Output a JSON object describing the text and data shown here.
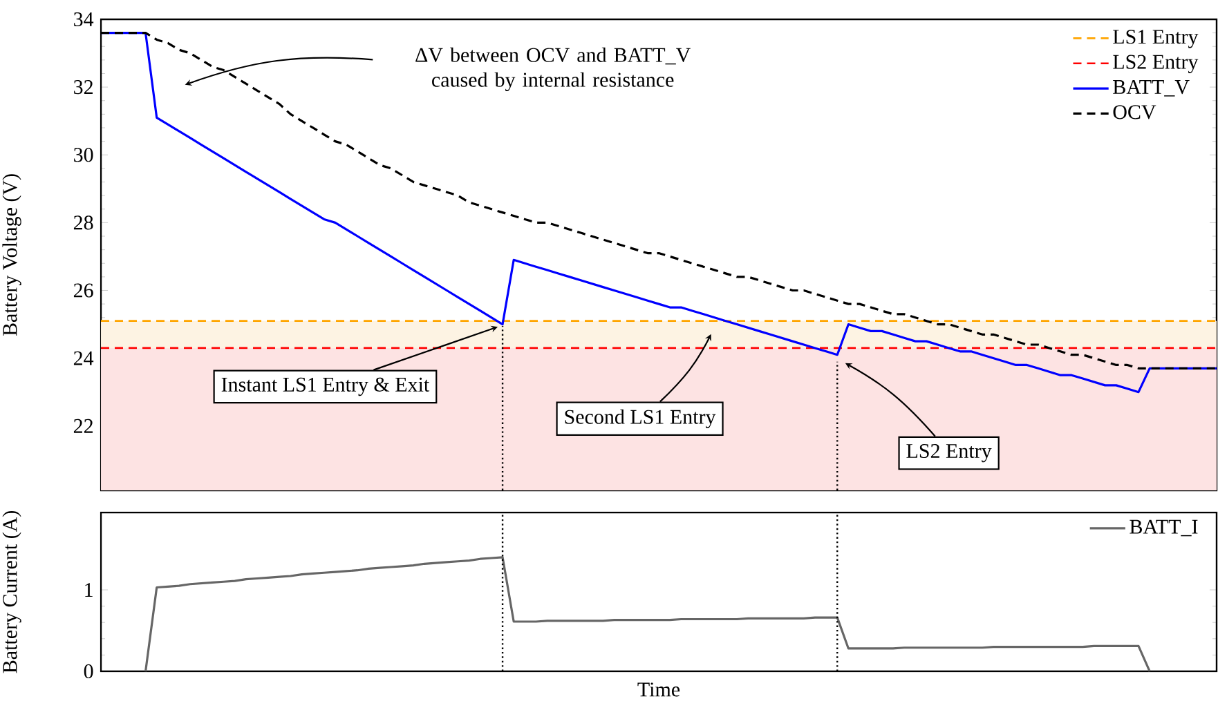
{
  "chart_data": [
    {
      "type": "line",
      "ylabel": "Battery Voltage (V)",
      "ylim": [
        20.1,
        34
      ],
      "yticks": [
        22,
        24,
        26,
        28,
        30,
        32,
        34
      ],
      "legend": "top right",
      "grid": false,
      "marker": "none",
      "categories": [
        null,
        null,
        null,
        null,
        null,
        null,
        null,
        null,
        null,
        null,
        null,
        null,
        null,
        null,
        null,
        null,
        null,
        null,
        null,
        null,
        null,
        null,
        null,
        null,
        null,
        null,
        null,
        null,
        null,
        null,
        null,
        null,
        null,
        null,
        null,
        null,
        null,
        null,
        null,
        null,
        null,
        null,
        null,
        null,
        null,
        null,
        null,
        null,
        null,
        null,
        null,
        null,
        null,
        null,
        null,
        null,
        null,
        null,
        null,
        null,
        null,
        null,
        null,
        null,
        null,
        null,
        null,
        null,
        null,
        null,
        null,
        null,
        null,
        null,
        null,
        null,
        null,
        null,
        null,
        null,
        null,
        null,
        null,
        null,
        null,
        null,
        null,
        null,
        null,
        null,
        null,
        null,
        null,
        null,
        null,
        null,
        null,
        null,
        null,
        null,
        null
      ],
      "series": [
        {
          "name": "BATT_V",
          "color": "#0000ff",
          "line_style": "solid",
          "values": [
            33.6,
            33.6,
            33.6,
            33.6,
            33.6,
            31.1,
            30.9,
            30.7,
            30.5,
            30.3,
            30.1,
            29.9,
            29.7,
            29.5,
            29.3,
            29.1,
            28.9,
            28.7,
            28.5,
            28.3,
            28.1,
            28.0,
            27.8,
            27.6,
            27.4,
            27.2,
            27.0,
            26.8,
            26.6,
            26.4,
            26.2,
            26.0,
            25.8,
            25.6,
            25.4,
            25.2,
            25.0,
            26.9,
            26.8,
            26.7,
            26.6,
            26.5,
            26.4,
            26.3,
            26.2,
            26.1,
            26.0,
            25.9,
            25.8,
            25.7,
            25.6,
            25.5,
            25.5,
            25.4,
            25.3,
            25.2,
            25.1,
            25.0,
            24.9,
            24.8,
            24.7,
            24.6,
            24.5,
            24.4,
            24.3,
            24.2,
            24.1,
            25.0,
            24.9,
            24.8,
            24.8,
            24.7,
            24.6,
            24.5,
            24.5,
            24.4,
            24.3,
            24.2,
            24.2,
            24.1,
            24.0,
            23.9,
            23.8,
            23.8,
            23.7,
            23.6,
            23.5,
            23.5,
            23.4,
            23.3,
            23.2,
            23.2,
            23.1,
            23.0,
            23.7,
            23.7,
            23.7,
            23.7,
            23.7,
            23.7,
            23.7
          ]
        },
        {
          "name": "OCV",
          "color": "#000000",
          "line_style": "dashed",
          "values": [
            33.6,
            33.6,
            33.6,
            33.6,
            33.6,
            33.4,
            33.3,
            33.1,
            33.0,
            32.8,
            32.6,
            32.5,
            32.3,
            32.1,
            31.9,
            31.7,
            31.5,
            31.2,
            31.0,
            30.8,
            30.6,
            30.4,
            30.3,
            30.1,
            29.9,
            29.7,
            29.6,
            29.4,
            29.2,
            29.1,
            29.0,
            28.9,
            28.8,
            28.6,
            28.5,
            28.4,
            28.3,
            28.2,
            28.1,
            28.0,
            28.0,
            27.9,
            27.8,
            27.7,
            27.6,
            27.5,
            27.4,
            27.3,
            27.2,
            27.1,
            27.1,
            27.0,
            26.9,
            26.8,
            26.7,
            26.6,
            26.5,
            26.4,
            26.4,
            26.3,
            26.2,
            26.1,
            26.0,
            26.0,
            25.9,
            25.8,
            25.7,
            25.6,
            25.6,
            25.5,
            25.4,
            25.3,
            25.3,
            25.2,
            25.1,
            25.0,
            25.0,
            24.9,
            24.8,
            24.7,
            24.7,
            24.6,
            24.5,
            24.4,
            24.4,
            24.3,
            24.2,
            24.1,
            24.1,
            24.0,
            23.9,
            23.8,
            23.8,
            23.7,
            23.7,
            23.7,
            23.7,
            23.7,
            23.7,
            23.7,
            23.7
          ]
        }
      ],
      "ref_lines": [
        {
          "axis": "y",
          "value": 25.1,
          "label": "LS1 Entry",
          "color": "#ffa500",
          "line_style": "dashed"
        },
        {
          "axis": "y",
          "value": 24.3,
          "label": "LS2 Entry",
          "color": "#ff0000",
          "line_style": "dashed"
        }
      ],
      "bands": [
        {
          "axis": "y",
          "from": 24.3,
          "to": 25.1,
          "color": "#fdf3e3"
        },
        {
          "axis": "y",
          "from": 20.1,
          "to": 24.3,
          "color": "#fde3e3"
        }
      ],
      "annotations": [
        "ΔV between OCV and BATT_V caused by internal resistance",
        "Instant LS1 Entry & Exit",
        "Second LS1 Entry",
        "LS2 Entry"
      ]
    },
    {
      "type": "line",
      "xlabel": "Time",
      "ylabel": "Battery Current (A)",
      "ylim": [
        0,
        1.95
      ],
      "yticks": [
        0,
        1
      ],
      "legend": "top right",
      "grid": false,
      "marker": "none",
      "categories": [
        null,
        null,
        null,
        null,
        null,
        null,
        null,
        null,
        null,
        null,
        null,
        null,
        null,
        null,
        null,
        null,
        null,
        null,
        null,
        null,
        null,
        null,
        null,
        null,
        null,
        null,
        null,
        null,
        null,
        null,
        null,
        null,
        null,
        null,
        null,
        null,
        null,
        null,
        null,
        null,
        null,
        null,
        null,
        null,
        null,
        null,
        null,
        null,
        null,
        null,
        null,
        null,
        null,
        null,
        null,
        null,
        null,
        null,
        null,
        null,
        null,
        null,
        null,
        null,
        null,
        null,
        null,
        null,
        null,
        null,
        null,
        null,
        null,
        null,
        null,
        null,
        null,
        null,
        null,
        null,
        null,
        null,
        null,
        null,
        null,
        null,
        null,
        null,
        null,
        null,
        null,
        null,
        null,
        null,
        null,
        null,
        null,
        null,
        null,
        null,
        null
      ],
      "series": [
        {
          "name": "BATT_I",
          "color": "#666666",
          "line_style": "solid",
          "values": [
            null,
            null,
            null,
            null,
            0,
            1.03,
            1.04,
            1.05,
            1.07,
            1.08,
            1.09,
            1.1,
            1.11,
            1.13,
            1.14,
            1.15,
            1.16,
            1.17,
            1.19,
            1.2,
            1.21,
            1.22,
            1.23,
            1.24,
            1.26,
            1.27,
            1.28,
            1.29,
            1.3,
            1.32,
            1.33,
            1.34,
            1.35,
            1.36,
            1.38,
            1.39,
            1.4,
            0.61,
            0.61,
            0.61,
            0.62,
            0.62,
            0.62,
            0.62,
            0.62,
            0.62,
            0.63,
            0.63,
            0.63,
            0.63,
            0.63,
            0.63,
            0.64,
            0.64,
            0.64,
            0.64,
            0.64,
            0.64,
            0.65,
            0.65,
            0.65,
            0.65,
            0.65,
            0.65,
            0.66,
            0.66,
            0.66,
            0.28,
            0.28,
            0.28,
            0.28,
            0.28,
            0.29,
            0.29,
            0.29,
            0.29,
            0.29,
            0.29,
            0.29,
            0.29,
            0.3,
            0.3,
            0.3,
            0.3,
            0.3,
            0.3,
            0.3,
            0.3,
            0.3,
            0.31,
            0.31,
            0.31,
            0.31,
            0.31,
            0,
            null,
            null,
            null,
            null,
            null,
            null
          ]
        }
      ]
    }
  ]
}
